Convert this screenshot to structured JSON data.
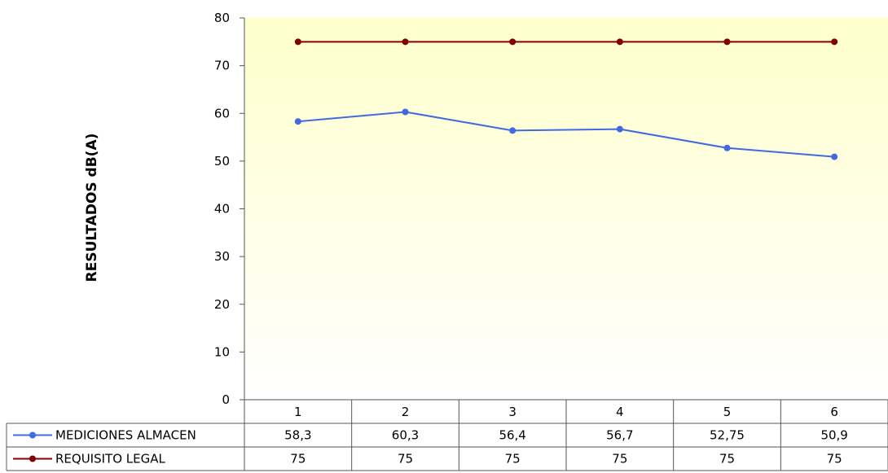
{
  "chart_data": {
    "type": "line",
    "ylabel": "RESULTADOS dB(A)",
    "xlabel": "",
    "ylim": [
      0,
      80
    ],
    "yticks": [
      "0",
      "10",
      "20",
      "30",
      "40",
      "50",
      "60",
      "70",
      "80"
    ],
    "categories": [
      "1",
      "2",
      "3",
      "4",
      "5",
      "6"
    ],
    "legend_position": "data-table-left",
    "series": [
      {
        "name": "MEDICIONES ALMACEN",
        "color": "#4169E1",
        "values": [
          58.3,
          60.3,
          56.4,
          56.7,
          52.75,
          50.9
        ],
        "labels": [
          "58,3",
          "60,3",
          "56,4",
          "56,7",
          "52,75",
          "50,9"
        ]
      },
      {
        "name": "REQUISITO LEGAL",
        "color": "#800000",
        "values": [
          75,
          75,
          75,
          75,
          75,
          75
        ],
        "labels": [
          "75",
          "75",
          "75",
          "75",
          "75",
          "75"
        ]
      }
    ],
    "plot_background": [
      "#FFFFFF",
      "#FFFFCC"
    ]
  }
}
